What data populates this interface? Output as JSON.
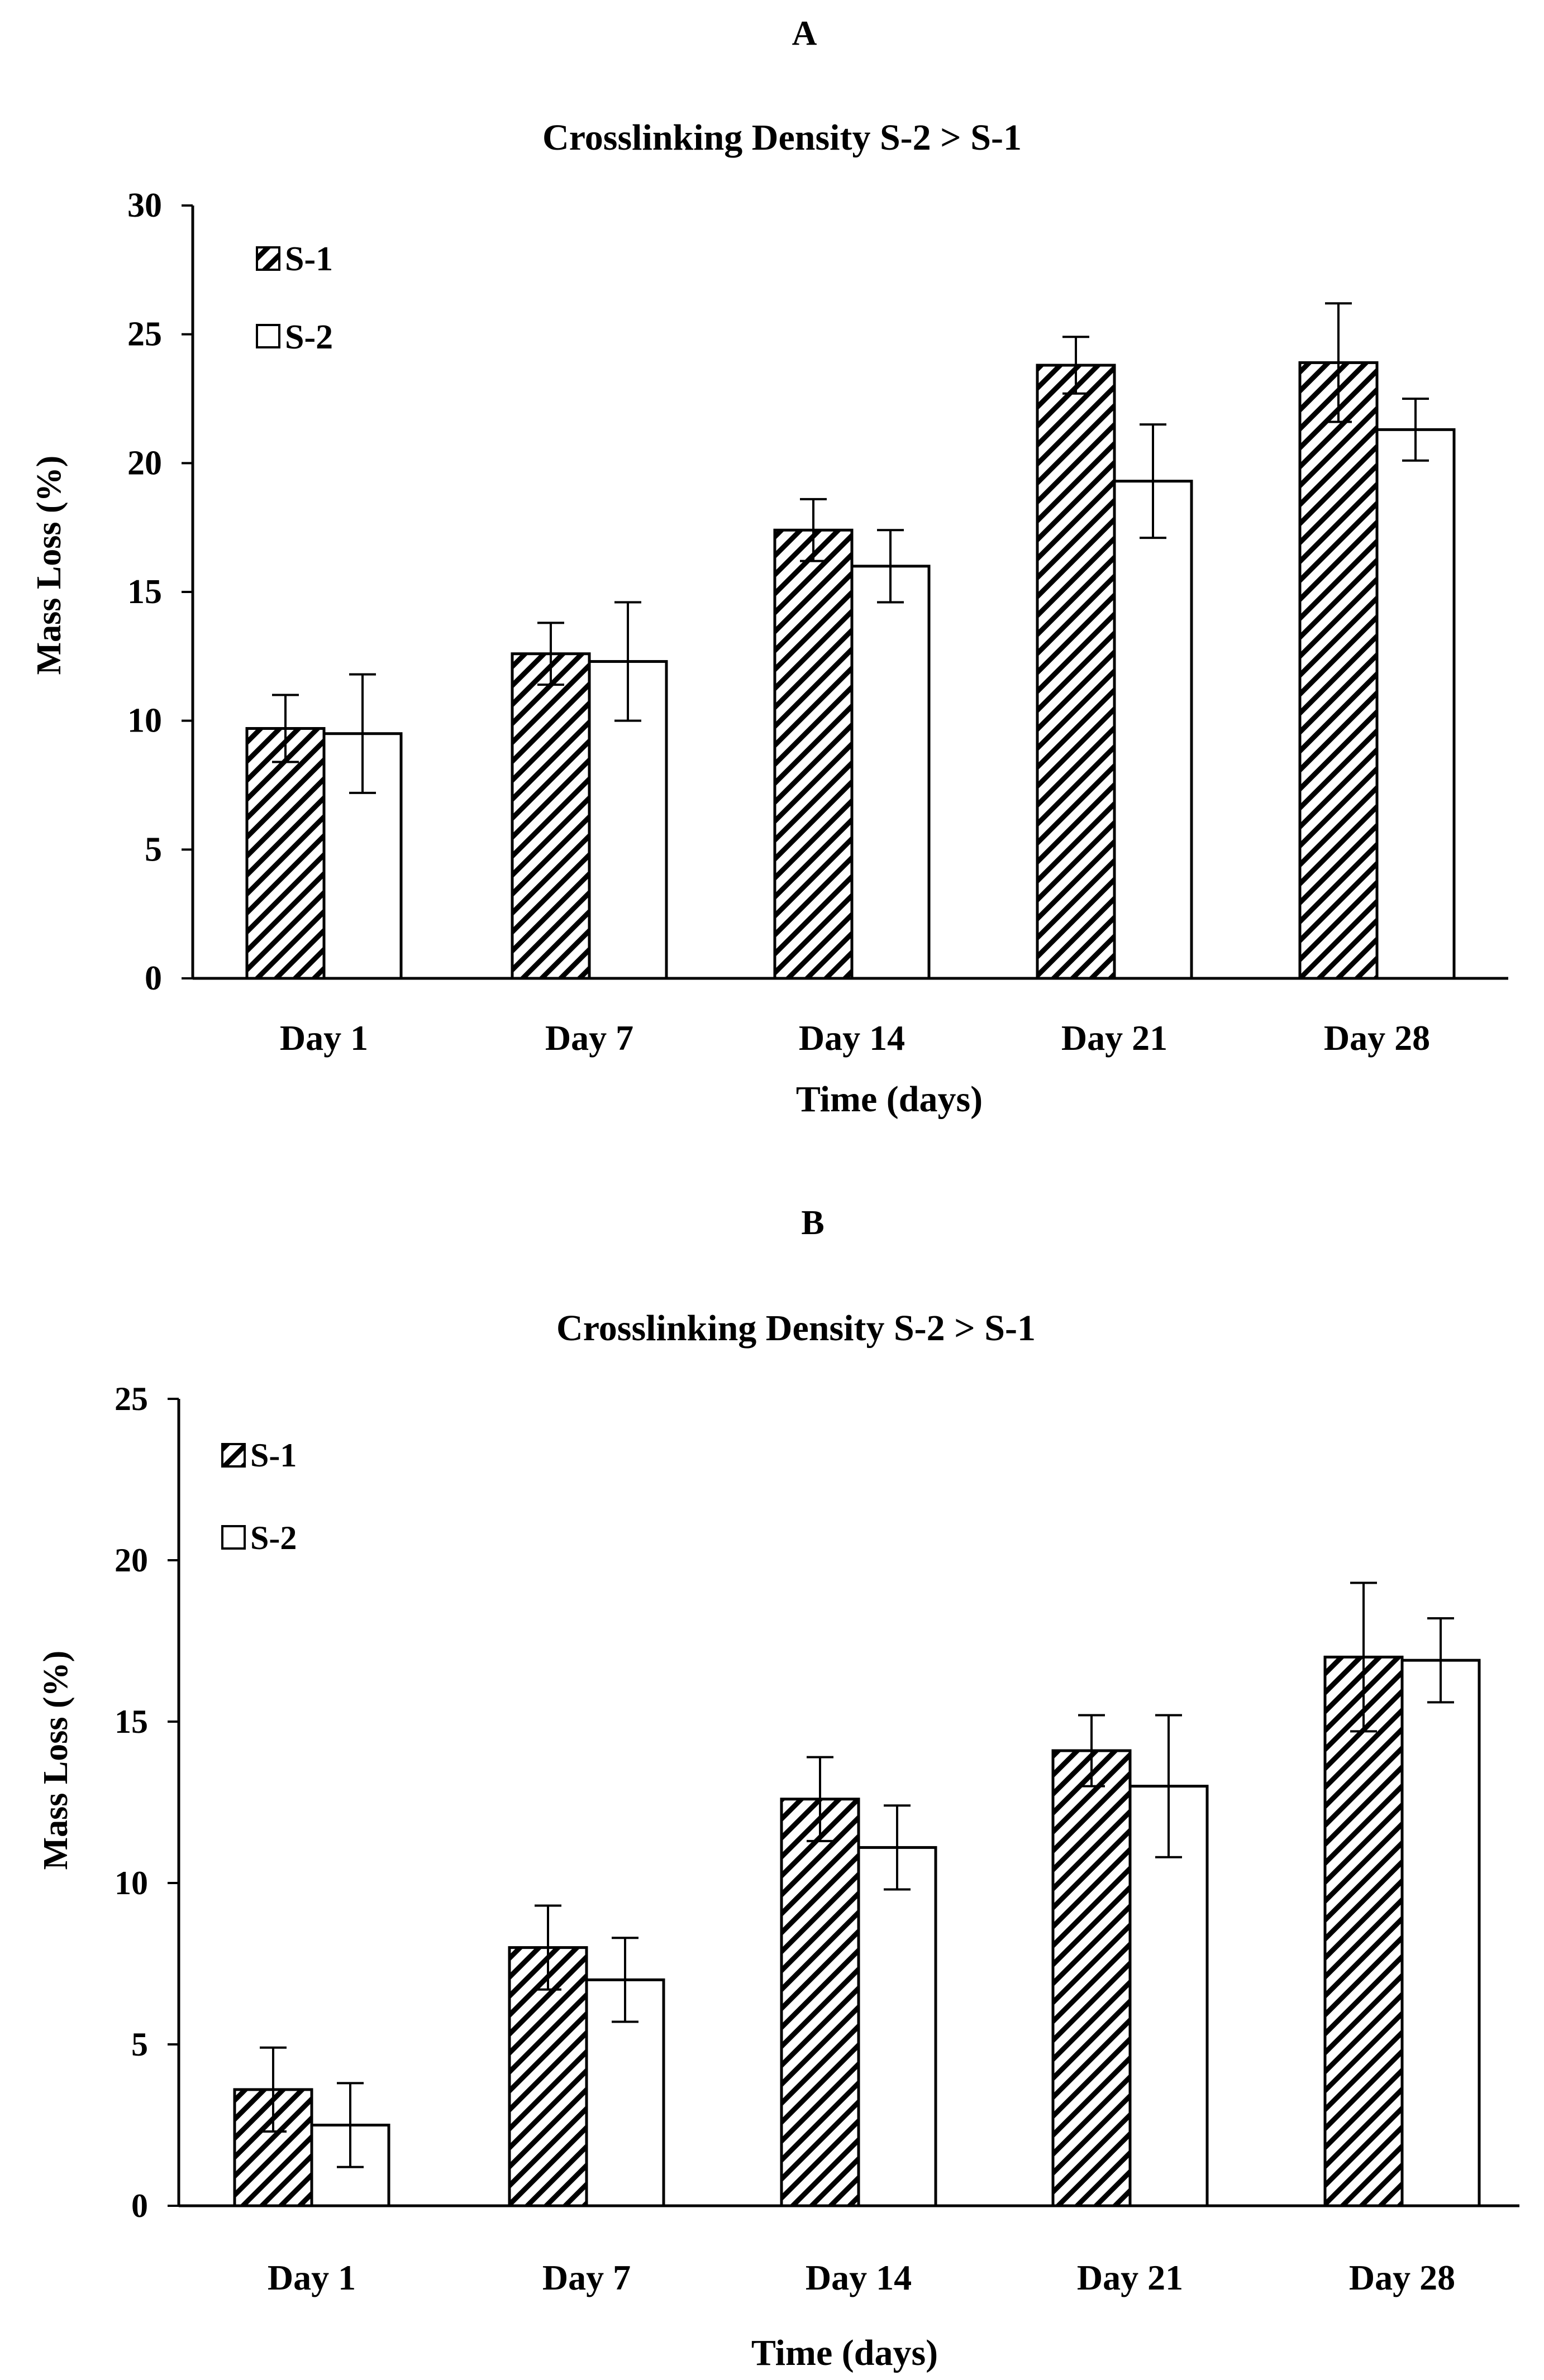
{
  "chart_data": [
    {
      "type": "bar",
      "panel_label": "A",
      "title": "Crosslinking Density S-2 > S-1",
      "xlabel": "Time (days)",
      "ylabel": "Mass Loss (%)",
      "ylim": [
        0,
        30
      ],
      "yticks": [
        "0",
        "5",
        "10",
        "15",
        "20",
        "25",
        "30"
      ],
      "categories": [
        "Day 1",
        "Day 7",
        "Day 14",
        "Day 21",
        "Day 28"
      ],
      "legend_position": "top-left",
      "series": [
        {
          "name": "S-1",
          "pattern": "hatched",
          "values": [
            9.7,
            12.6,
            17.4,
            23.8,
            23.9
          ],
          "errors": [
            1.3,
            1.2,
            1.2,
            1.1,
            2.3
          ]
        },
        {
          "name": "S-2",
          "pattern": "open",
          "values": [
            9.5,
            12.3,
            16.0,
            19.3,
            21.3
          ],
          "errors": [
            2.3,
            2.3,
            1.4,
            2.2,
            1.2
          ]
        }
      ]
    },
    {
      "type": "bar",
      "panel_label": "B",
      "title": "Crosslinking Density S-2 > S-1",
      "xlabel": "Time (days)",
      "ylabel": "Mass Loss (%)",
      "ylim": [
        0,
        25
      ],
      "yticks": [
        "0",
        "5",
        "10",
        "15",
        "20",
        "25"
      ],
      "categories": [
        "Day 1",
        "Day 7",
        "Day 14",
        "Day 21",
        "Day 28"
      ],
      "legend_position": "top-left",
      "series": [
        {
          "name": "S-1",
          "pattern": "hatched",
          "values": [
            3.6,
            8.0,
            12.6,
            14.1,
            17.0
          ],
          "errors": [
            1.3,
            1.3,
            1.3,
            1.1,
            2.3
          ]
        },
        {
          "name": "S-2",
          "pattern": "open",
          "values": [
            2.5,
            7.0,
            11.1,
            13.0,
            16.9
          ],
          "errors": [
            1.3,
            1.3,
            1.3,
            2.2,
            1.3
          ]
        }
      ]
    }
  ]
}
